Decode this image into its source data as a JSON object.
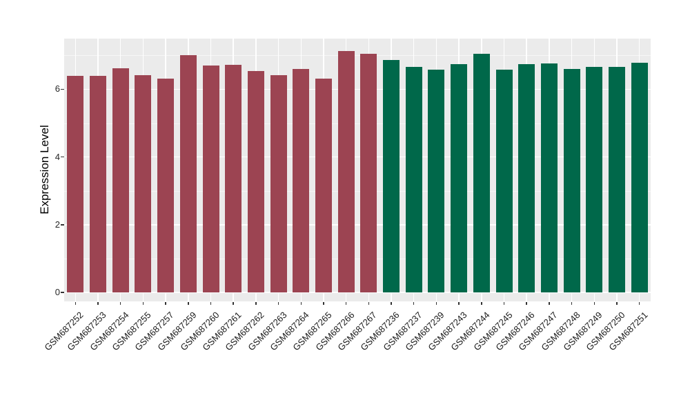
{
  "colors": {
    "group1_bar": "#9C4452",
    "group2_bar": "#00684A",
    "panel_background": "#EBEBEB",
    "grid_major": "#FFFFFF",
    "axis_text": "#262626"
  },
  "chart_data": {
    "type": "bar",
    "title": "",
    "xlabel": "",
    "ylabel": "Expression Level",
    "yticks": [
      0,
      2,
      4,
      6
    ],
    "ylim": [
      0,
      7.5
    ],
    "grid": true,
    "legend": "none",
    "x_label_rotation_deg": 45,
    "bars": [
      {
        "label": "GSM687252",
        "value": 6.4,
        "color": "#9C4452"
      },
      {
        "label": "GSM687253",
        "value": 6.4,
        "color": "#9C4452"
      },
      {
        "label": "GSM687254",
        "value": 6.62,
        "color": "#9C4452"
      },
      {
        "label": "GSM687255",
        "value": 6.42,
        "color": "#9C4452"
      },
      {
        "label": "GSM687257",
        "value": 6.31,
        "color": "#9C4452"
      },
      {
        "label": "GSM687259",
        "value": 7.01,
        "color": "#9C4452"
      },
      {
        "label": "GSM687260",
        "value": 6.71,
        "color": "#9C4452"
      },
      {
        "label": "GSM687261",
        "value": 6.73,
        "color": "#9C4452"
      },
      {
        "label": "GSM687262",
        "value": 6.54,
        "color": "#9C4452"
      },
      {
        "label": "GSM687263",
        "value": 6.42,
        "color": "#9C4452"
      },
      {
        "label": "GSM687264",
        "value": 6.59,
        "color": "#9C4452"
      },
      {
        "label": "GSM687265",
        "value": 6.31,
        "color": "#9C4452"
      },
      {
        "label": "GSM687266",
        "value": 7.13,
        "color": "#9C4452"
      },
      {
        "label": "GSM687267",
        "value": 7.04,
        "color": "#9C4452"
      },
      {
        "label": "GSM687236",
        "value": 6.87,
        "color": "#00684A"
      },
      {
        "label": "GSM687237",
        "value": 6.66,
        "color": "#00684A"
      },
      {
        "label": "GSM687239",
        "value": 6.58,
        "color": "#00684A"
      },
      {
        "label": "GSM687243",
        "value": 6.75,
        "color": "#00684A"
      },
      {
        "label": "GSM687244",
        "value": 7.04,
        "color": "#00684A"
      },
      {
        "label": "GSM687245",
        "value": 6.58,
        "color": "#00684A"
      },
      {
        "label": "GSM687246",
        "value": 6.75,
        "color": "#00684A"
      },
      {
        "label": "GSM687247",
        "value": 6.76,
        "color": "#00684A"
      },
      {
        "label": "GSM687248",
        "value": 6.6,
        "color": "#00684A"
      },
      {
        "label": "GSM687249",
        "value": 6.65,
        "color": "#00684A"
      },
      {
        "label": "GSM687250",
        "value": 6.65,
        "color": "#00684A"
      },
      {
        "label": "GSM687251",
        "value": 6.79,
        "color": "#00684A"
      }
    ]
  }
}
